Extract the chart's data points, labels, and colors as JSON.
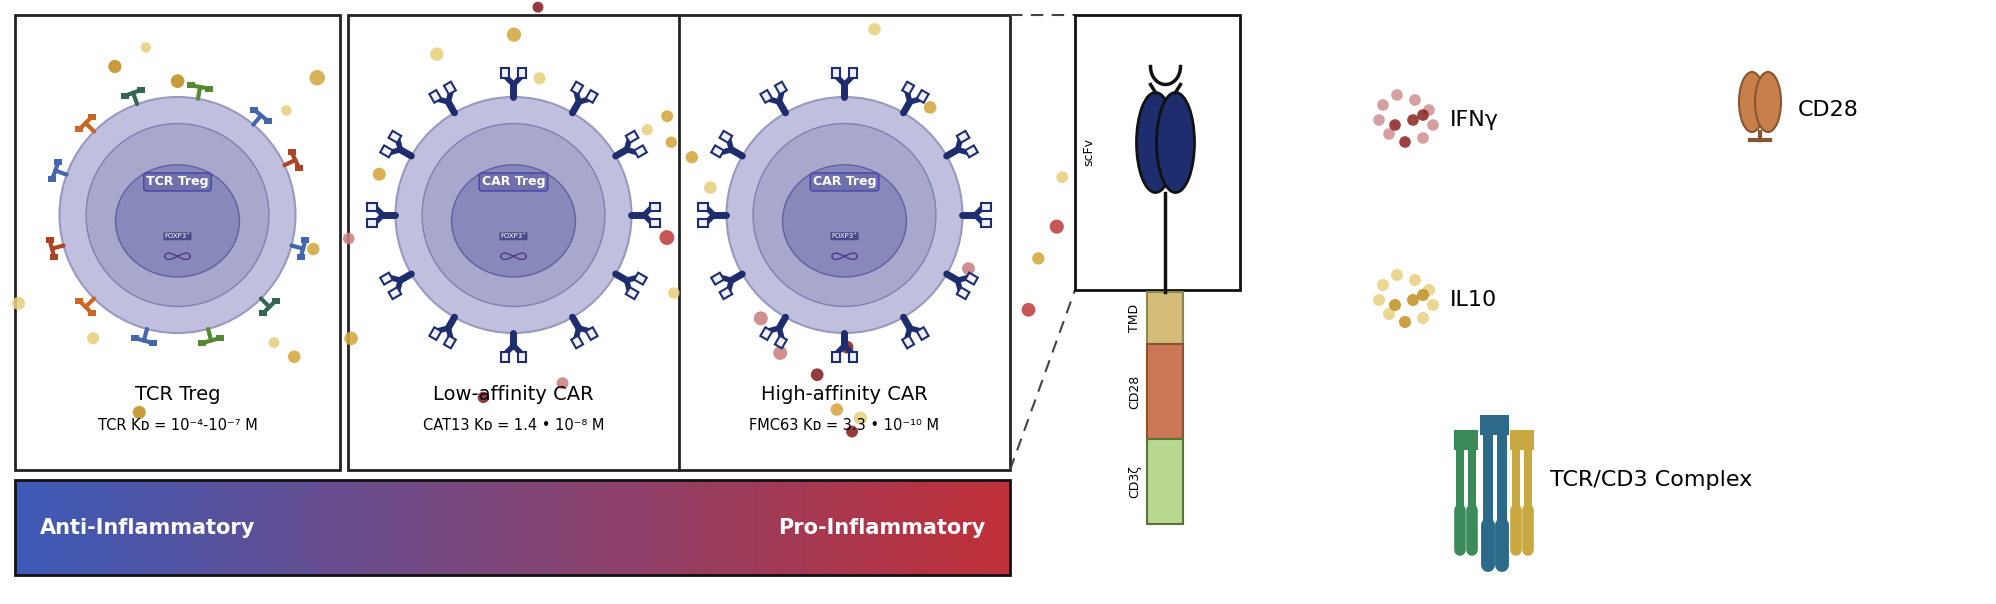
{
  "fig_width": 19.96,
  "fig_height": 6.04,
  "bg_color": "#ffffff",
  "gradient_left_color": "#3d5bb8",
  "gradient_right_color": "#c03040",
  "anti_inflammatory_text": "Anti-Inflammatory",
  "pro_inflammatory_text": "Pro-Inflammatory",
  "panel_border_color": "#222222",
  "tcr_treg_label": "TCR Treg",
  "tcr_kd_label": "TCR Kᴅ = 10⁻⁴-10⁻⁷ M",
  "low_car_label": "Low-affinity CAR",
  "low_car_kd": "CAT13 Kᴅ = 1.4 • 10⁻⁸ M",
  "high_car_label": "High-affinity CAR",
  "high_car_kd": "FMC63 Kᴅ = 3.3 • 10⁻¹⁰ M",
  "scfv_label": "scFv",
  "tmd_label": "TMD",
  "cd28_domain_label": "CD28",
  "cd3z_label": "CD3ζ",
  "ifny_label": "IFNγ",
  "il10_label": "IL10",
  "cd28_legend_label": "CD28",
  "tcr_cd3_label": "TCR/CD3 Complex",
  "cell_outer_color": "#c0c0de",
  "cell_mid_color": "#a8a8cc",
  "cell_inner_color": "#8888bb",
  "cell_nucleus_color": "#7070aa",
  "tmd_color": "#d4bc78",
  "cd28_color": "#cc7755",
  "cd3z_color": "#b8d890",
  "scfv_dark_blue": "#1e2d6e",
  "dot_yellow_light": "#e8d080",
  "dot_yellow_med": "#d4a840",
  "dot_yellow_dark": "#c09020",
  "dot_red_light": "#cc8080",
  "dot_red_med": "#c04040",
  "dot_red_dark": "#882020",
  "dot_pink_light": "#d09090",
  "dot_pink_med": "#b86060",
  "car_receptor_color": "#1e2d6e",
  "tcr_receptor_colors": [
    "#4466aa",
    "#336655",
    "#558833",
    "#cc6622",
    "#aa4422",
    "#5588cc"
  ],
  "cd28_icon_color": "#c8804a",
  "tcr_cd3_colors": [
    "#3a7a8a",
    "#4a8a5a",
    "#c8a840",
    "#c8a840",
    "#3a7a8a",
    "#4a8a5a"
  ]
}
